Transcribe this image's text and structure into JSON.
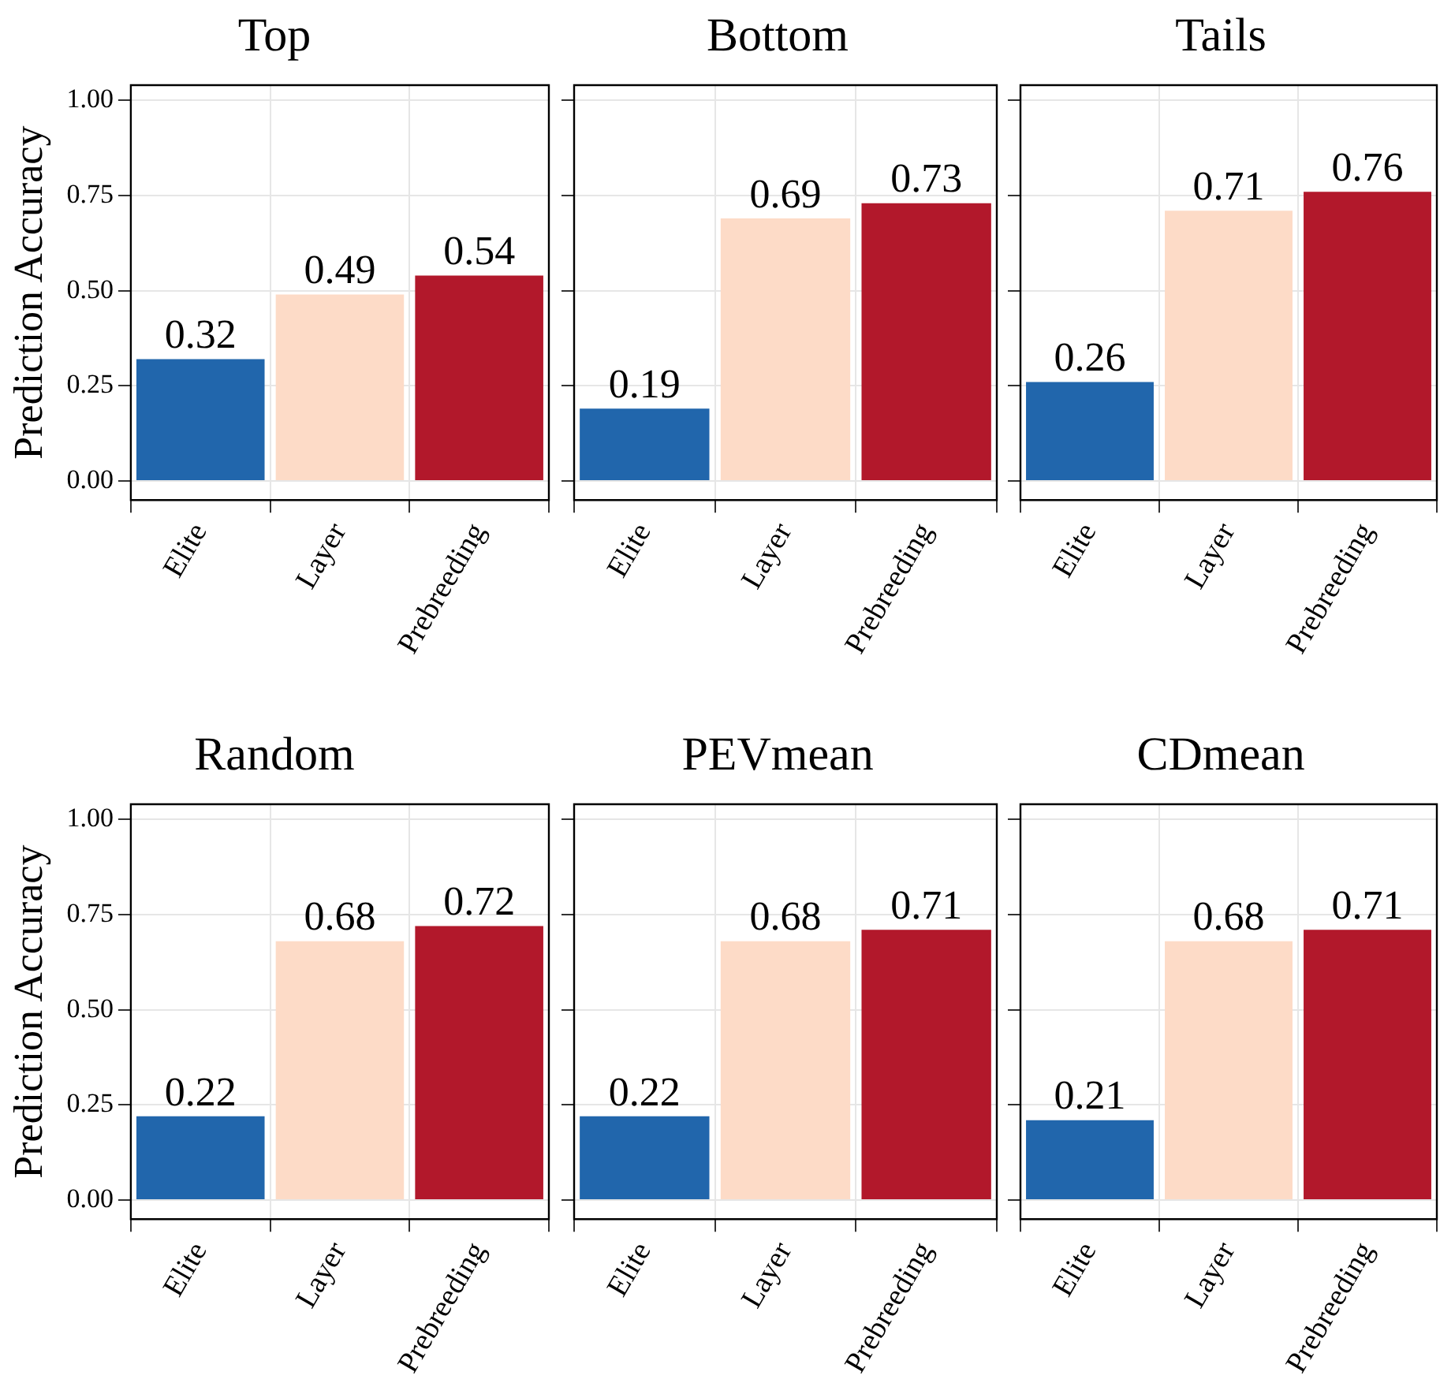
{
  "chart_data": [
    {
      "type": "bar",
      "title": "Top",
      "ylabel": "Prediction Accuracy",
      "categories": [
        "Elite",
        "Layer",
        "Prebreeding"
      ],
      "values": [
        0.32,
        0.49,
        0.54
      ],
      "colors": [
        "#2166ac",
        "#fddbc7",
        "#b2182b"
      ],
      "ylim": [
        -0.05,
        1.04
      ],
      "yticks": [
        {
          "value": 0,
          "label": "0.00"
        },
        {
          "value": 0.25,
          "label": "0.25"
        },
        {
          "value": 0.5,
          "label": "0.50"
        },
        {
          "value": 0.75,
          "label": "0.75"
        },
        {
          "value": 1,
          "label": "1.00"
        }
      ],
      "grid": true,
      "data_labels": true
    },
    {
      "type": "bar",
      "title": "Bottom",
      "categories": [
        "Elite",
        "Layer",
        "Prebreeding"
      ],
      "values": [
        0.19,
        0.69,
        0.73
      ],
      "colors": [
        "#2166ac",
        "#fddbc7",
        "#b2182b"
      ],
      "ylim": [
        -0.05,
        1.04
      ],
      "yticks": [
        0,
        0.25,
        0.5,
        0.75,
        1
      ],
      "grid": true,
      "data_labels": true,
      "tick_labels": "x"
    },
    {
      "type": "bar",
      "title": "Tails",
      "categories": [
        "Elite",
        "Layer",
        "Prebreeding"
      ],
      "values": [
        0.26,
        0.71,
        0.76
      ],
      "colors": [
        "#2166ac",
        "#fddbc7",
        "#b2182b"
      ],
      "ylim": [
        -0.05,
        1.04
      ],
      "yticks": [
        0,
        0.25,
        0.5,
        0.75,
        1
      ],
      "grid": true,
      "data_labels": true,
      "tick_labels": "x"
    },
    {
      "type": "bar",
      "title": "Random",
      "ylabel": "Prediction Accuracy",
      "categories": [
        "Elite",
        "Layer",
        "Prebreeding"
      ],
      "values": [
        0.22,
        0.68,
        0.72
      ],
      "colors": [
        "#2166ac",
        "#fddbc7",
        "#b2182b"
      ],
      "ylim": [
        -0.05,
        1.04
      ],
      "yticks": [
        {
          "value": 0,
          "label": "0.00"
        },
        {
          "value": 0.25,
          "label": "0.25"
        },
        {
          "value": 0.5,
          "label": "0.50"
        },
        {
          "value": 0.75,
          "label": "0.75"
        },
        {
          "value": 1,
          "label": "1.00"
        }
      ],
      "grid": true,
      "data_labels": true
    },
    {
      "type": "bar",
      "title": "PEVmean",
      "categories": [
        "Elite",
        "Layer",
        "Prebreeding"
      ],
      "values": [
        0.22,
        0.68,
        0.71
      ],
      "colors": [
        "#2166ac",
        "#fddbc7",
        "#b2182b"
      ],
      "ylim": [
        -0.05,
        1.04
      ],
      "yticks": [
        0,
        0.25,
        0.5,
        0.75,
        1
      ],
      "grid": true,
      "data_labels": true,
      "tick_labels": "x"
    },
    {
      "type": "bar",
      "title": "CDmean",
      "categories": [
        "Elite",
        "Layer",
        "Prebreeding"
      ],
      "values": [
        0.21,
        0.68,
        0.71
      ],
      "colors": [
        "#2166ac",
        "#fddbc7",
        "#b2182b"
      ],
      "ylim": [
        -0.05,
        1.04
      ],
      "yticks": [
        0,
        0.25,
        0.5,
        0.75,
        1
      ],
      "grid": true,
      "data_labels": true,
      "tick_labels": "x"
    }
  ]
}
